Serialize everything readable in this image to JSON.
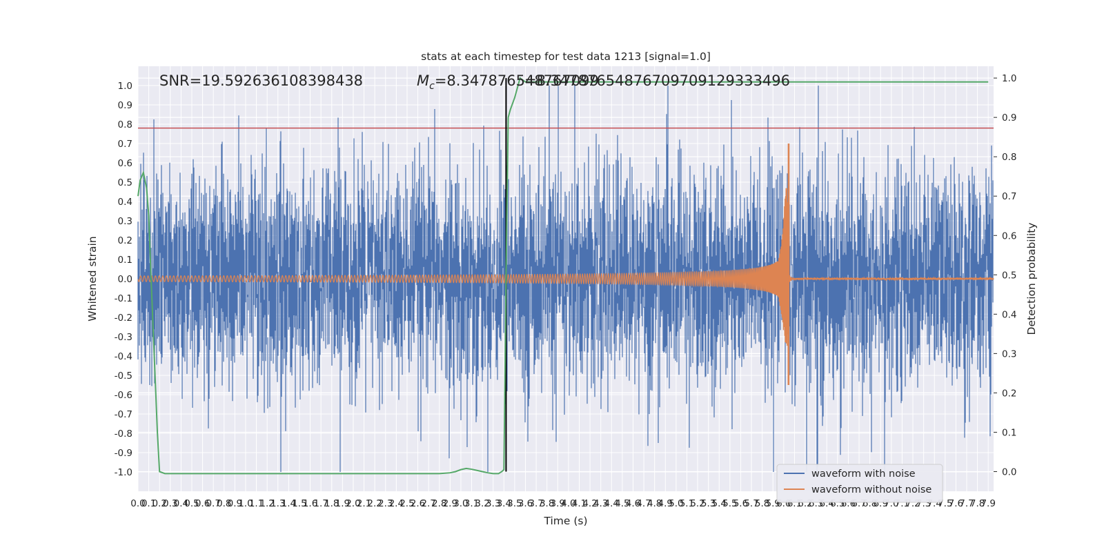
{
  "chart_data": {
    "type": "line",
    "title": "stats at each timestep for test data 1213 [signal=1.0]",
    "xlabel": "Time (s)",
    "ylabel": "Whitened strain",
    "y2label": "Detection probability",
    "xlim": [
      0.0,
      7.95
    ],
    "ylim": [
      -1.1,
      1.1
    ],
    "y2lim": [
      -0.05,
      1.03
    ],
    "x_ticks": [
      0.0,
      0.1,
      0.2,
      0.3,
      0.4,
      0.5,
      0.6,
      0.7,
      0.8,
      0.9,
      1.0,
      1.1,
      1.2,
      1.3,
      1.4,
      1.5,
      1.6,
      1.7,
      1.8,
      1.9,
      2.0,
      2.1,
      2.2,
      2.3,
      2.4,
      2.5,
      2.6,
      2.7,
      2.8,
      2.9,
      3.0,
      3.1,
      3.2,
      3.3,
      3.4,
      3.5,
      3.6,
      3.7,
      3.8,
      3.9,
      4.0,
      4.1,
      4.2,
      4.3,
      4.4,
      4.5,
      4.6,
      4.7,
      4.8,
      4.9,
      5.0,
      5.1,
      5.2,
      5.3,
      5.4,
      5.5,
      5.6,
      5.7,
      5.8,
      5.9,
      6.0,
      6.1,
      6.2,
      6.3,
      6.4,
      6.5,
      6.6,
      6.7,
      6.8,
      6.9,
      7.0,
      7.1,
      7.2,
      7.3,
      7.4,
      7.5,
      7.6,
      7.7,
      7.8,
      7.9
    ],
    "y_ticks": [
      1.0,
      0.9,
      0.8,
      0.7,
      0.6,
      0.5,
      0.4,
      0.3,
      0.2,
      0.1,
      0.0,
      -0.1,
      -0.2,
      -0.3,
      -0.4,
      -0.5,
      -0.6,
      -0.7,
      -0.8,
      -0.9,
      -1.0
    ],
    "y2_ticks": [
      1.0,
      0.9,
      0.8,
      0.7,
      0.6,
      0.5,
      0.4,
      0.3,
      0.2,
      0.1,
      0.0
    ],
    "grid": true,
    "legend_position": "lower-right",
    "annotations": {
      "snr": "SNR=19.592636108398438",
      "mc_symbol": "M",
      "mc_subscript": "c",
      "mc_value": "=8.347876548767099",
      "mc_overlap": "=8.34787654876709709129333496"
    },
    "threshold_line": {
      "y": 0.78,
      "color": "#c44e52"
    },
    "vertical_line": {
      "x": 3.42,
      "color": "#000000"
    },
    "series": [
      {
        "name": "waveform with noise",
        "color": "#4c72b0",
        "description": "whitened strain with noise, |x| mostly < 0.6, peaks up to 0.98",
        "amp_scale": 0.28,
        "max_abs": 1.0
      },
      {
        "name": "waveform without noise",
        "color": "#dd8452",
        "chirp": {
          "t_merger": 6.05,
          "amp_start": 0.025,
          "amp_peak": 0.7,
          "post_amp": 0.005,
          "f_start": 29,
          "f_end": 150
        }
      },
      {
        "name": "detection probability",
        "color": "#55a868",
        "axis": "right",
        "x": [
          0.0,
          0.02,
          0.05,
          0.08,
          0.1,
          0.12,
          0.15,
          0.18,
          0.2,
          0.25,
          0.3,
          0.5,
          1.0,
          2.0,
          2.8,
          2.9,
          2.95,
          3.0,
          3.05,
          3.1,
          3.15,
          3.2,
          3.25,
          3.3,
          3.35,
          3.38,
          3.4,
          3.42,
          3.44,
          3.46,
          3.5,
          3.55,
          3.6,
          4.0,
          5.0,
          6.0,
          7.0,
          7.9
        ],
        "values": [
          0.7,
          0.74,
          0.76,
          0.72,
          0.65,
          0.5,
          0.3,
          0.1,
          0.0,
          -0.005,
          -0.005,
          -0.005,
          -0.005,
          -0.005,
          -0.005,
          -0.003,
          0.0,
          0.005,
          0.008,
          0.006,
          0.003,
          0.0,
          -0.003,
          -0.005,
          -0.005,
          0.0,
          0.005,
          0.5,
          0.9,
          0.92,
          0.95,
          1.0,
          0.99,
          0.99,
          0.99,
          0.99,
          0.99,
          0.99
        ]
      }
    ]
  }
}
